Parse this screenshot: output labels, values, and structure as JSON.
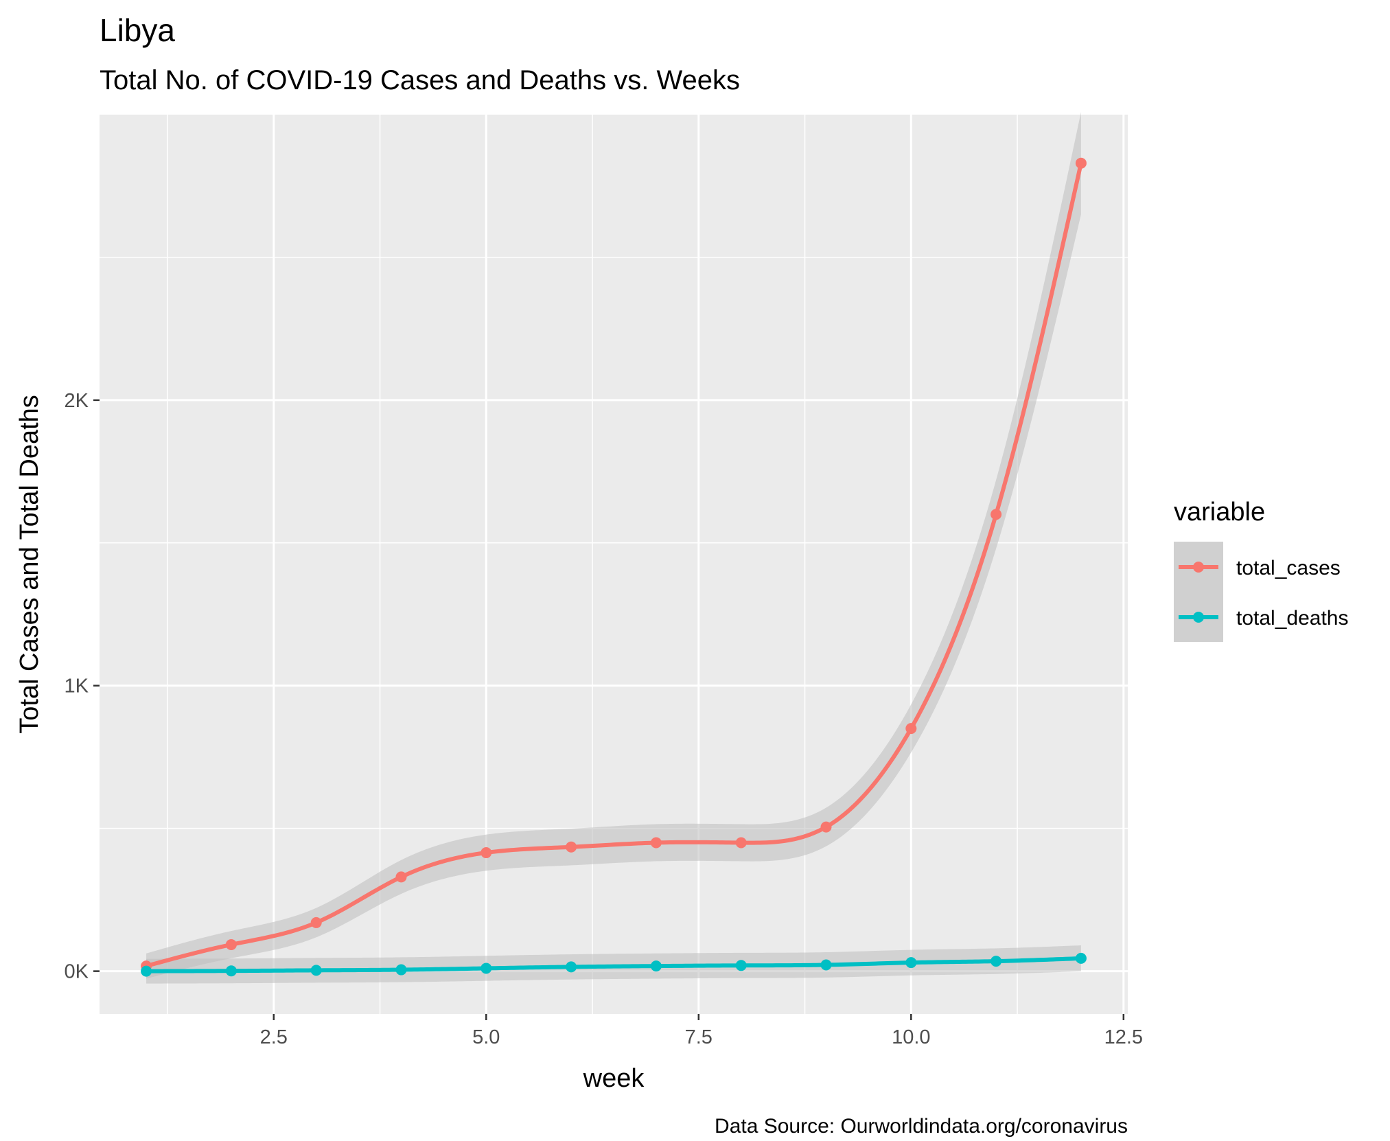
{
  "chart_data": {
    "type": "line",
    "title": "Libya",
    "subtitle": "Total No. of COVID-19 Cases and Deaths vs. Weeks",
    "xlabel": "week",
    "ylabel": "Total Cases and Total Deaths",
    "caption": "Data Source: Ourworldindata.org/coronavirus",
    "xlim": [
      0.45,
      12.55
    ],
    "ylim": [
      -150,
      3000
    ],
    "x_ticks": [
      2.5,
      5.0,
      7.5,
      10.0,
      12.5
    ],
    "x_tick_labels": [
      "2.5",
      "5.0",
      "7.5",
      "10.0",
      "12.5"
    ],
    "y_ticks": [
      0,
      1000,
      2000
    ],
    "y_tick_labels": [
      "0K",
      "1K",
      "2K"
    ],
    "grid": true,
    "smoothed": true,
    "legend": {
      "title": "variable",
      "position": "right"
    },
    "x": [
      1,
      2,
      3,
      4,
      5,
      6,
      7,
      8,
      9,
      10,
      11,
      12
    ],
    "series": [
      {
        "name": "total_cases",
        "color": "#F8766D",
        "values": [
          18,
          93,
          170,
          330,
          415,
          435,
          450,
          450,
          505,
          850,
          1600,
          2830
        ]
      },
      {
        "name": "total_deaths",
        "color": "#00BFC4",
        "values": [
          0,
          1,
          3,
          5,
          10,
          15,
          18,
          20,
          22,
          30,
          35,
          45
        ]
      }
    ],
    "colors": {
      "panel_background": "#EBEBEB",
      "grid_major": "#FFFFFF",
      "confidence_band": "#BEBEBE",
      "legend_key_background": "#D0D0D0"
    }
  }
}
